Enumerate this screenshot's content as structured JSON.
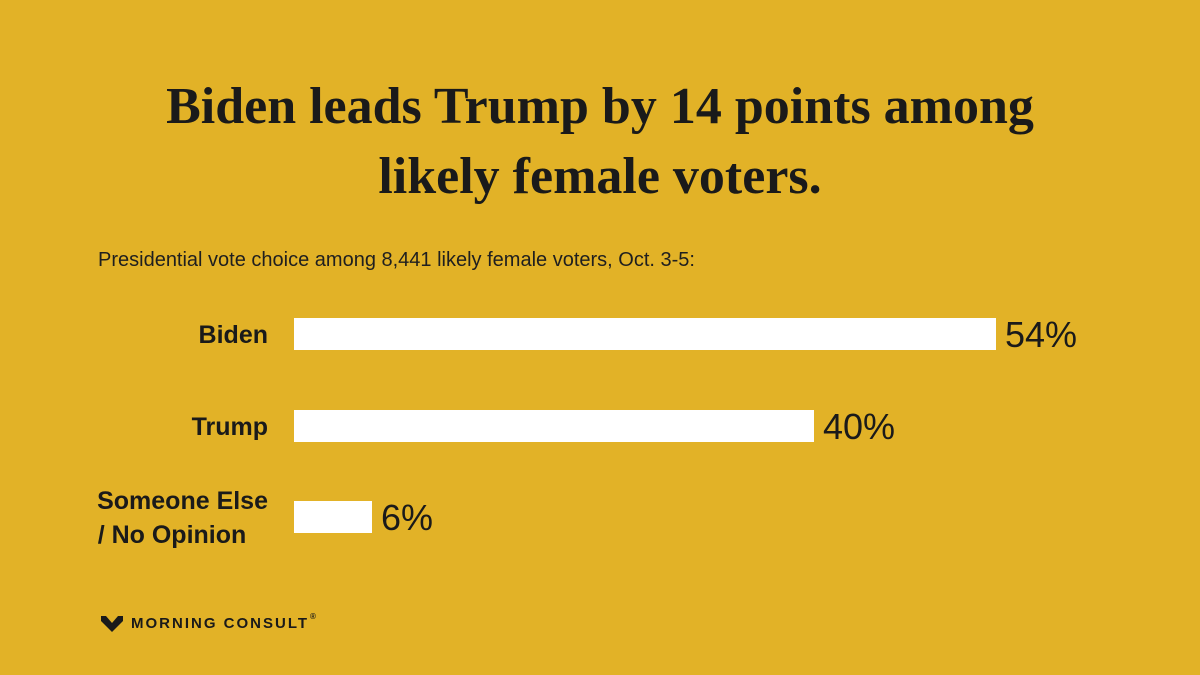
{
  "title": {
    "regular": "Biden leads Trump ",
    "bold_line1": "by 14 points among",
    "bold_line2": "likely female voters."
  },
  "subtitle": "Presidential vote choice among 8,441 likely female voters, Oct. 3-5:",
  "chart_data": {
    "type": "bar",
    "orientation": "horizontal",
    "categories": [
      [
        "Biden"
      ],
      [
        "Trump"
      ],
      [
        "Someone Else",
        "/ No Opinion"
      ]
    ],
    "values": [
      54,
      40,
      6
    ],
    "value_labels": [
      "54%",
      "40%",
      "6%"
    ],
    "xlim": [
      0,
      54
    ],
    "colors": {
      "bar": "#FFFFFF",
      "background": "#E2B227"
    }
  },
  "brand": {
    "name": "MORNING CONSULT",
    "mark": "®",
    "icon": "morning-consult-logo-icon"
  }
}
